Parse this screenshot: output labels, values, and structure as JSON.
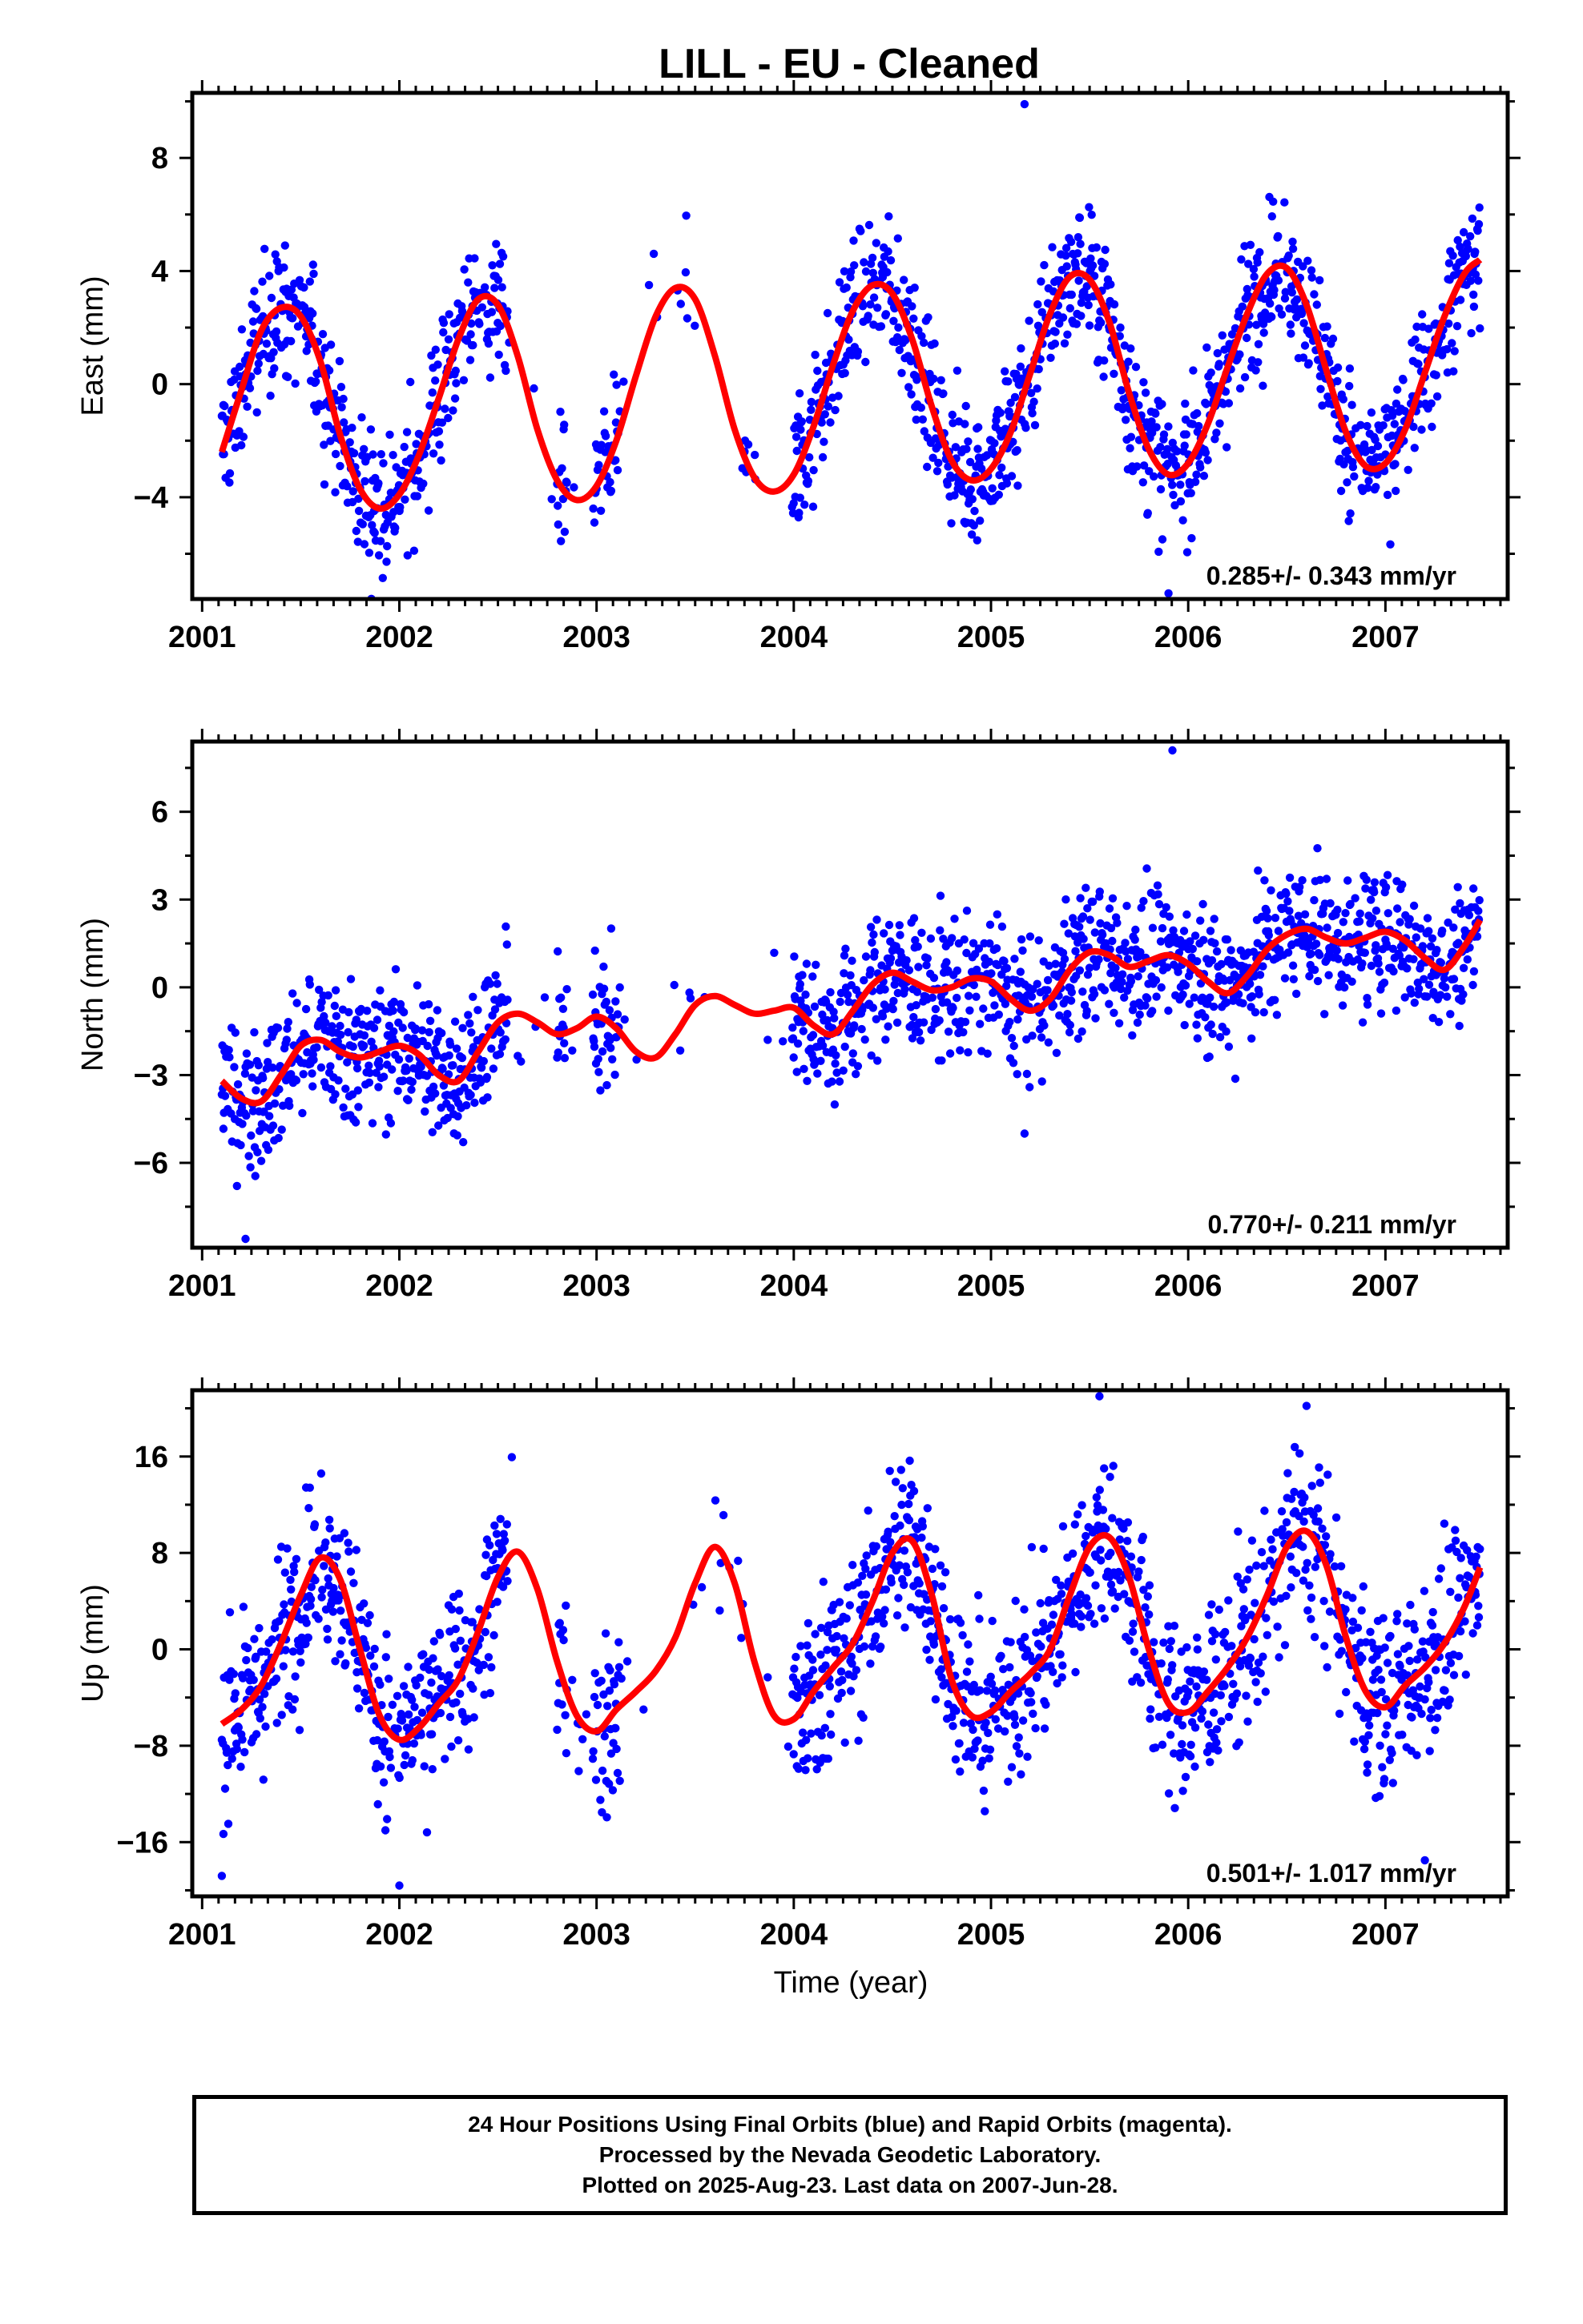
{
  "title": "LILL  - EU - Cleaned",
  "xlabel": "Time (year)",
  "footer": {
    "line1": "24 Hour Positions Using Final Orbits (blue) and Rapid Orbits (magenta).",
    "line2": "Processed by the Nevada Geodetic Laboratory.",
    "line3": "Plotted on 2025-Aug-23. Last data on 2007-Jun-28."
  },
  "colors": {
    "points": "#0000ff",
    "fit": "#ff0000"
  },
  "chart_data": [
    {
      "type": "scatter",
      "ylabel": "East (mm)",
      "rate_label": "0.285+/- 0.343 mm/yr",
      "xlim": [
        2000.95,
        2007.62
      ],
      "ylim": [
        -7.6,
        10.3
      ],
      "xticks": [
        2001,
        2002,
        2003,
        2004,
        2005,
        2006,
        2007
      ],
      "yticks": [
        -4,
        0,
        4,
        8
      ],
      "grid": false,
      "fit_curve": {
        "x": [
          2001.1,
          2001.2,
          2001.3,
          2001.4,
          2001.5,
          2001.6,
          2001.7,
          2001.8,
          2001.9,
          2002.0,
          2002.1,
          2002.2,
          2002.3,
          2002.4,
          2002.5,
          2002.6,
          2002.7,
          2002.8,
          2002.9,
          2003.0,
          2003.1,
          2003.2,
          2003.3,
          2003.4,
          2003.5,
          2003.6,
          2003.7,
          2003.8,
          2003.9,
          2004.0,
          2004.1,
          2004.2,
          2004.3,
          2004.4,
          2004.5,
          2004.6,
          2004.7,
          2004.8,
          2004.9,
          2005.0,
          2005.1,
          2005.2,
          2005.3,
          2005.4,
          2005.5,
          2005.6,
          2005.7,
          2005.8,
          2005.9,
          2006.0,
          2006.1,
          2006.2,
          2006.3,
          2006.4,
          2006.5,
          2006.6,
          2006.7,
          2006.8,
          2006.9,
          2007.0,
          2007.1,
          2007.2,
          2007.3,
          2007.4,
          2007.48
        ],
        "y": [
          -2.4,
          -0.2,
          1.9,
          2.7,
          2.4,
          0.8,
          -1.8,
          -3.7,
          -4.4,
          -3.9,
          -2.5,
          -0.5,
          1.6,
          3.0,
          2.8,
          1.0,
          -1.6,
          -3.4,
          -4.1,
          -3.6,
          -2.0,
          0.3,
          2.4,
          3.4,
          3.0,
          1.0,
          -1.6,
          -3.3,
          -3.8,
          -3.2,
          -1.5,
          0.7,
          2.6,
          3.5,
          3.2,
          1.6,
          -0.8,
          -2.7,
          -3.4,
          -3.0,
          -1.7,
          0.4,
          2.5,
          3.8,
          3.7,
          2.2,
          -0.3,
          -2.3,
          -3.2,
          -2.8,
          -1.4,
          0.6,
          2.5,
          3.9,
          4.1,
          2.8,
          0.5,
          -1.7,
          -2.9,
          -2.8,
          -1.6,
          0.4,
          2.4,
          3.9,
          4.4
        ]
      },
      "outliers": [
        [
          2005.17,
          9.9
        ],
        [
          2005.9,
          -7.4
        ]
      ]
    },
    {
      "type": "scatter",
      "ylabel": "North (mm)",
      "rate_label": "0.770+/- 0.211 mm/yr",
      "xlim": [
        2000.95,
        2007.62
      ],
      "ylim": [
        -8.9,
        8.4
      ],
      "xticks": [
        2001,
        2002,
        2003,
        2004,
        2005,
        2006,
        2007
      ],
      "yticks": [
        -6,
        -3,
        0,
        3,
        6
      ],
      "grid": false,
      "fit_curve": {
        "x": [
          2001.1,
          2001.2,
          2001.3,
          2001.4,
          2001.5,
          2001.6,
          2001.7,
          2001.8,
          2001.9,
          2002.0,
          2002.1,
          2002.2,
          2002.3,
          2002.4,
          2002.5,
          2002.6,
          2002.7,
          2002.8,
          2002.9,
          2003.0,
          2003.1,
          2003.2,
          2003.3,
          2003.4,
          2003.5,
          2003.6,
          2003.7,
          2003.8,
          2003.9,
          2004.0,
          2004.1,
          2004.2,
          2004.3,
          2004.4,
          2004.5,
          2004.6,
          2004.7,
          2004.8,
          2004.9,
          2005.0,
          2005.1,
          2005.2,
          2005.3,
          2005.4,
          2005.5,
          2005.6,
          2005.7,
          2005.8,
          2005.9,
          2006.0,
          2006.1,
          2006.2,
          2006.3,
          2006.4,
          2006.5,
          2006.6,
          2006.7,
          2006.8,
          2006.9,
          2007.0,
          2007.1,
          2007.2,
          2007.3,
          2007.4,
          2007.48
        ],
        "y": [
          -3.2,
          -3.8,
          -3.9,
          -3.0,
          -2.0,
          -1.8,
          -2.2,
          -2.4,
          -2.2,
          -2.0,
          -2.3,
          -3.0,
          -3.2,
          -2.2,
          -1.2,
          -0.9,
          -1.2,
          -1.6,
          -1.4,
          -1.0,
          -1.4,
          -2.2,
          -2.4,
          -1.6,
          -0.6,
          -0.3,
          -0.6,
          -0.9,
          -0.8,
          -0.7,
          -1.3,
          -1.6,
          -0.8,
          0.1,
          0.5,
          0.2,
          -0.1,
          0.0,
          0.3,
          0.2,
          -0.4,
          -0.8,
          -0.4,
          0.6,
          1.2,
          1.1,
          0.7,
          0.9,
          1.1,
          0.8,
          0.2,
          -0.2,
          0.4,
          1.3,
          1.8,
          2.0,
          1.7,
          1.5,
          1.7,
          1.9,
          1.6,
          1.0,
          0.6,
          1.4,
          2.3
        ]
      },
      "outliers": [
        [
          2005.92,
          8.1
        ],
        [
          2001.22,
          -8.6
        ],
        [
          2005.17,
          -5.0
        ]
      ]
    },
    {
      "type": "scatter",
      "ylabel": "Up (mm)",
      "rate_label": "0.501+/- 1.017 mm/yr",
      "xlim": [
        2000.95,
        2007.62
      ],
      "ylim": [
        -20.5,
        21.5
      ],
      "xticks": [
        2001,
        2002,
        2003,
        2004,
        2005,
        2006,
        2007
      ],
      "yticks": [
        -16,
        -8,
        0,
        8,
        16
      ],
      "grid": false,
      "fit_curve": {
        "x": [
          2001.1,
          2001.2,
          2001.3,
          2001.4,
          2001.5,
          2001.6,
          2001.7,
          2001.8,
          2001.9,
          2002.0,
          2002.1,
          2002.2,
          2002.3,
          2002.4,
          2002.5,
          2002.6,
          2002.7,
          2002.8,
          2002.9,
          2003.0,
          2003.1,
          2003.2,
          2003.3,
          2003.4,
          2003.5,
          2003.6,
          2003.7,
          2003.8,
          2003.9,
          2004.0,
          2004.1,
          2004.2,
          2004.3,
          2004.4,
          2004.5,
          2004.6,
          2004.7,
          2004.8,
          2004.9,
          2005.0,
          2005.1,
          2005.2,
          2005.3,
          2005.4,
          2005.5,
          2005.6,
          2005.7,
          2005.8,
          2005.9,
          2006.0,
          2006.1,
          2006.2,
          2006.3,
          2006.4,
          2006.5,
          2006.6,
          2006.7,
          2006.8,
          2006.9,
          2007.0,
          2007.1,
          2007.2,
          2007.3,
          2007.4,
          2007.48
        ],
        "y": [
          -6.2,
          -5.0,
          -3.0,
          0.5,
          4.5,
          7.6,
          5.8,
          0.0,
          -5.5,
          -7.5,
          -6.5,
          -4.5,
          -2.5,
          1.5,
          6.0,
          8.1,
          5.0,
          -1.0,
          -5.5,
          -6.8,
          -5.0,
          -3.5,
          -1.8,
          1.0,
          5.5,
          8.5,
          5.5,
          -1.0,
          -5.5,
          -5.8,
          -3.5,
          -1.5,
          0.5,
          4.0,
          8.0,
          9.0,
          4.5,
          -2.5,
          -5.5,
          -5.2,
          -3.5,
          -2.0,
          0.0,
          4.5,
          8.5,
          9.3,
          6.0,
          0.0,
          -4.5,
          -5.2,
          -3.5,
          -1.5,
          1.0,
          4.5,
          8.5,
          9.8,
          7.0,
          1.0,
          -3.5,
          -4.8,
          -3.0,
          -1.5,
          0.5,
          3.5,
          6.8
        ]
      },
      "outliers": [
        [
          2001.1,
          -18.8
        ],
        [
          2002.0,
          -19.6
        ],
        [
          2005.55,
          21.0
        ],
        [
          2006.6,
          20.2
        ],
        [
          2007.2,
          -17.5
        ]
      ]
    }
  ]
}
